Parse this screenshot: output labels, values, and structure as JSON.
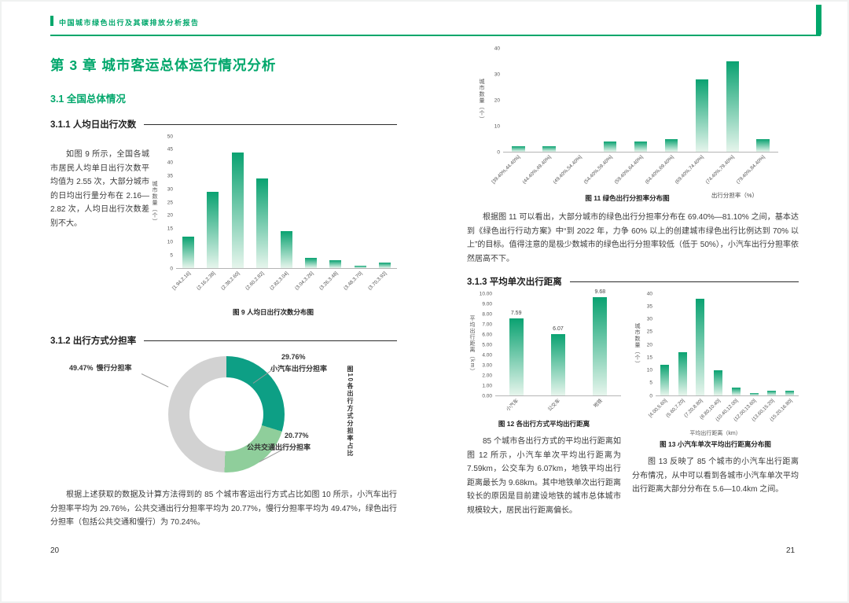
{
  "colors": {
    "accent": "#00a76b",
    "bar-top": "#0aa271",
    "bar-bottom": "#e6f5ec"
  },
  "header": {
    "report_title": "中国城市绿色出行及其碳排放分析报告"
  },
  "left": {
    "chapter_title": "第 3 章 城市客运总体运行情况分析",
    "s31": "3.1 全国总体情况",
    "s311": "3.1.1 人均日出行次数",
    "p311": "如图 9 所示，全国各城市居民人均单日出行次数平均值为 2.55 次，大部分城市的日均出行量分布在 2.16—2.82 次，人均日出行次数差别不大。",
    "s312": "3.1.2 出行方式分担率",
    "p312": "根据上述获取的数据及计算方法得到的 85 个城市客运出行方式占比如图 10 所示，小汽车出行分担率平均为 29.76%，公共交通出行分担率平均为 20.77%，慢行分担率平均为 49.47%，绿色出行分担率（包括公共交通和慢行）为 70.24%。",
    "page_number": "20"
  },
  "right": {
    "p_fig11": "根据图 11 可以看出，大部分城市的绿色出行分担率分布在 69.40%—81.10% 之间，基本达到《绿色出行行动方案》中“到 2022 年，力争 60% 以上的创建城市绿色出行比例达到 70% 以上”的目标。值得注意的是极少数城市的绿色出行分担率较低（低于 50%），小汽车出行分担率依然居高不下。",
    "s313": "3.1.3 平均单次出行距离",
    "p_fig12": "85 个城市各出行方式的平均出行距离如图 12 所示，小汽车单次平均出行距离为 7.59km，公交车为 6.07km，地铁平均出行距离最长为 9.68km。其中地铁单次出行距离较长的原因是目前建设地铁的城市总体城市规模较大，居民出行距离偏长。",
    "p_fig13": "图 13 反映了 85 个城市的小汽车出行距离分布情况，从中可以看到各城市小汽车单次平均出行距离大部分分布在 5.6—10.4km 之间。",
    "page_number": "21"
  },
  "chart_data": [
    {
      "id": "fig9",
      "type": "bar",
      "title": "图 9 人均日出行次数分布图",
      "xlabel": "",
      "ylabel": "城市数量（个）",
      "ylim": [
        0,
        50
      ],
      "ytick_step": 5,
      "ytick_decimals": 0,
      "categories": [
        "[1.94,2.16]",
        "(2.16,2.38]",
        "(2.38,2.60]",
        "(2.60,2.82]",
        "(2.82,3.04]",
        "(3.04,3.26]",
        "(3.26,3.48]",
        "(3.48,3.70]",
        "(3.70,3.92]"
      ],
      "values": [
        12,
        29,
        44,
        34,
        14,
        4,
        3,
        1,
        2
      ],
      "grid": false,
      "legend": "none"
    },
    {
      "id": "fig10",
      "type": "pie",
      "donut": true,
      "title": "图10各出行方式分担率占比",
      "slices": [
        {
          "name": "小汽车出行分担率",
          "pct": "29.76%",
          "value": 29.76,
          "color": "#0d9f85"
        },
        {
          "name": "公共交通出行分担率",
          "pct": "20.77%",
          "value": 20.77,
          "color": "#8fce9b"
        },
        {
          "name": "慢行分担率",
          "pct": "49.47%",
          "value": 49.47,
          "color": "#d2d2d2"
        }
      ]
    },
    {
      "id": "fig11",
      "type": "bar",
      "title": "图 11 绿色出行分担率分布图",
      "xlabel": "出行分担率（%）",
      "ylabel": "城市数量（个）",
      "ylim": [
        0,
        40
      ],
      "ytick_step": 10,
      "ytick_decimals": 0,
      "categories": [
        "[39.40%,44.40%]",
        "(44.40%,49.40%]",
        "(49.40%,54.40%]",
        "(54.40%,59.40%]",
        "(59.40%,64.40%]",
        "(64.40%,69.40%]",
        "(69.40%,74.40%]",
        "(74.40%,79.40%]",
        "(79.40%,84.40%]"
      ],
      "values": [
        2,
        2,
        0,
        4,
        4,
        5,
        28,
        35,
        5
      ],
      "grid": false,
      "legend": "none"
    },
    {
      "id": "fig12",
      "type": "bar",
      "title": "图 12 各出行方式平均出行距离",
      "xlabel": "",
      "ylabel": "平均出行距离（km）",
      "ylim": [
        0,
        10
      ],
      "ytick_step": 1,
      "ytick_decimals": 2,
      "value_decimals": 2,
      "show_values": true,
      "categories": [
        "小汽车",
        "公交车",
        "地铁"
      ],
      "values": [
        7.59,
        6.07,
        9.68
      ],
      "grid": false,
      "legend": "none"
    },
    {
      "id": "fig13",
      "type": "bar",
      "title": "图 13 小汽车单次平均出行距离分布图",
      "xlabel": "平均出行距离（km）",
      "ylabel": "城市数量（个）",
      "ylim": [
        0,
        40
      ],
      "ytick_step": 5,
      "ytick_decimals": 0,
      "categories": [
        "[4.00,5.60]",
        "(5.60,7.20]",
        "(7.20,8.80]",
        "(8.80,10.40]",
        "(10.40,12.00]",
        "(12.00,13.60]",
        "(13.60,15.20]",
        "(15.20,16.80]"
      ],
      "values": [
        12,
        17,
        38,
        10,
        3,
        1,
        2,
        2
      ],
      "grid": false,
      "legend": "none"
    }
  ]
}
